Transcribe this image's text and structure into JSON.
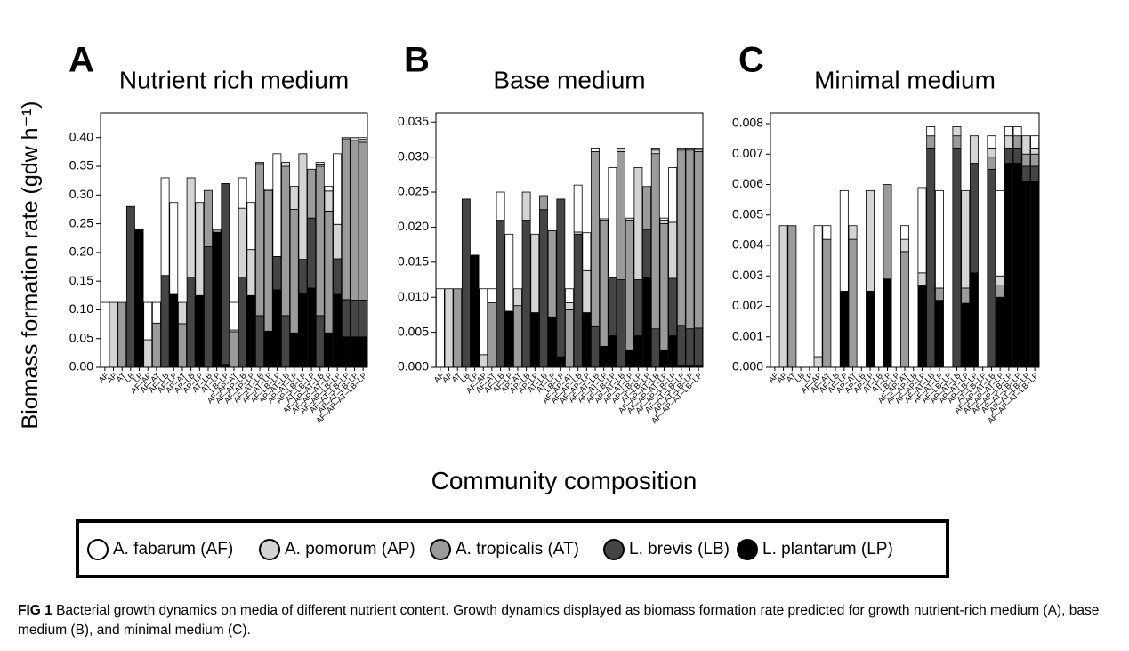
{
  "chart_data": [
    {
      "type": "bar",
      "stacked": true,
      "letter": "A",
      "title": "Nutrient rich medium",
      "categories": [
        "AF",
        "AP",
        "AT",
        "LB",
        "LP",
        "AF–AP",
        "AF–AT",
        "AF–LB",
        "AF–LP",
        "AP–AT",
        "AP–LB",
        "AP–LP",
        "AT–LB",
        "AT–LP",
        "LB–LP",
        "AF–AP–AT",
        "AF–AP–LB",
        "AF–AP–LP",
        "AF–AT–LB",
        "AF–AT–LP",
        "AF–LB–LP",
        "AP–AT–LB",
        "AP–AT–LP",
        "AP–LB–LP",
        "AT–LB–LP",
        "AF–AP–AT–LB",
        "AF–AP–AT–LP",
        "AF–AP–LB–LP",
        "AF–AT–LB–LP",
        "AP–AT–LB–LP",
        "AF–AP–AT–LB–LP"
      ],
      "series": [
        {
          "values": [
            0.113,
            null,
            null,
            null,
            null,
            0.065,
            0.036,
            0.17,
            0.16,
            null,
            null,
            null,
            null,
            null,
            null,
            0.048,
            0.053,
            0.082,
            0.002,
            0.002,
            0.179,
            null,
            null,
            null,
            null,
            0.003,
            0.008,
            0.123,
            0.002,
            null,
            0.003
          ]
        },
        {
          "values": [
            null,
            0.113,
            null,
            null,
            null,
            0.048,
            null,
            null,
            null,
            0.037,
            0.173,
            0.162,
            null,
            null,
            null,
            0.003,
            0.12,
            0.08,
            null,
            null,
            null,
            0.007,
            0.04,
            0.184,
            null,
            0.004,
            0.035,
            0.06,
            null,
            0.005,
            0.005
          ]
        },
        {
          "values": [
            null,
            null,
            0.113,
            null,
            null,
            null,
            0.077,
            null,
            null,
            0.076,
            null,
            null,
            0.098,
            0.005,
            null,
            0.062,
            null,
            null,
            0.265,
            0.245,
            null,
            0.26,
            0.215,
            null,
            0.085,
            0.26,
            0.212,
            null,
            0.28,
            0.278,
            0.275
          ]
        },
        {
          "values": [
            null,
            null,
            null,
            0.28,
            null,
            null,
            null,
            0.16,
            null,
            null,
            0.157,
            null,
            0.21,
            null,
            0.315,
            null,
            0.157,
            null,
            0.09,
            null,
            0.058,
            0.09,
            null,
            0.06,
            0.122,
            0.09,
            null,
            0.062,
            0.065,
            0.064,
            0.064
          ]
        },
        {
          "values": [
            null,
            null,
            null,
            null,
            0.24,
            null,
            null,
            null,
            0.127,
            null,
            null,
            0.125,
            null,
            0.235,
            0.005,
            null,
            null,
            0.125,
            null,
            0.063,
            0.135,
            null,
            0.06,
            0.128,
            0.138,
            null,
            0.06,
            0.127,
            0.053,
            0.053,
            0.053
          ]
        }
      ],
      "ylim": [
        0,
        0.443
      ],
      "yticks": [
        {
          "value": 0,
          "label": "0.00"
        },
        0.05,
        {
          "value": 0.1,
          "label": "0.10"
        },
        0.15,
        {
          "value": 0.2,
          "label": "0.20"
        },
        0.25,
        {
          "value": 0.3,
          "label": "0.30"
        },
        0.35,
        {
          "value": 0.4,
          "label": "0.40"
        }
      ]
    },
    {
      "type": "bar",
      "stacked": true,
      "letter": "B",
      "title": "Base medium",
      "categories": [
        "AF",
        "AP",
        "AT",
        "LB",
        "LP",
        "AF–AP",
        "AF–AT",
        "AF–LB",
        "AF–LP",
        "AP–AT",
        "AP–LB",
        "AP–LP",
        "AT–LB",
        "AT–LP",
        "LB–LP",
        "AF–AP–AT",
        "AF–AP–LB",
        "AF–AP–LP",
        "AF–AT–LB",
        "AF–AT–LP",
        "AF–LB–LP",
        "AP–AT–LB",
        "AP–AT–LP",
        "AP–LB–LP",
        "AT–LB–LP",
        "AF–AP–AT–LB",
        "AF–AP–AT–LP",
        "AF–AP–LB–LP",
        "AF–AT–LB–LP",
        "AP–AT–LB–LP",
        "AF–AP–AT–LB–LP"
      ],
      "series": [
        {
          "values": [
            0.0112,
            null,
            null,
            null,
            null,
            0.0094,
            0.002,
            0.004,
            0.011,
            null,
            null,
            null,
            null,
            null,
            null,
            0.002,
            0.0067,
            0.0054,
            0.0005,
            0.0002,
            0.0157,
            null,
            null,
            null,
            null,
            0.0003,
            0.0003,
            0.0078,
            0.0003,
            null,
            0.0002
          ]
        },
        {
          "values": [
            null,
            0.0112,
            null,
            null,
            null,
            0.0018,
            null,
            null,
            null,
            0.0024,
            0.004,
            0.0112,
            null,
            null,
            null,
            0.001,
            0.0003,
            0.006,
            null,
            null,
            null,
            0.0005,
            0.0003,
            0.016,
            null,
            0.0005,
            0.0005,
            0.008,
            null,
            0.0003,
            0.0003
          ]
        },
        {
          "values": [
            null,
            null,
            0.0112,
            null,
            null,
            null,
            0.0092,
            null,
            null,
            0.0088,
            null,
            null,
            0.002,
            0.0123,
            null,
            0.0082,
            null,
            null,
            0.025,
            0.018,
            null,
            0.0183,
            0.0185,
            null,
            0.0062,
            0.025,
            0.018,
            null,
            0.025,
            0.0255,
            0.0252
          ]
        },
        {
          "values": [
            null,
            null,
            null,
            0.024,
            null,
            null,
            null,
            0.021,
            null,
            null,
            0.021,
            null,
            0.0225,
            null,
            0.0225,
            null,
            0.019,
            null,
            0.0058,
            null,
            0.0083,
            0.0125,
            null,
            0.008,
            0.0068,
            0.0055,
            null,
            0.0082,
            0.0057,
            0.0052,
            0.0053
          ]
        },
        {
          "values": [
            null,
            null,
            null,
            null,
            0.016,
            null,
            null,
            null,
            0.008,
            null,
            null,
            0.0078,
            null,
            0.0072,
            0.0015,
            null,
            null,
            0.0078,
            null,
            0.003,
            0.0045,
            null,
            0.0025,
            0.0045,
            0.0128,
            null,
            0.0025,
            0.0045,
            0.0003,
            0.0003,
            0.0003
          ]
        }
      ],
      "ylim": [
        0,
        0.0363
      ],
      "yticks": [
        {
          "value": 0,
          "label": "0.000"
        },
        0.005,
        {
          "value": 0.01,
          "label": "0.010"
        },
        0.015,
        {
          "value": 0.02,
          "label": "0.020"
        },
        0.025,
        {
          "value": 0.03,
          "label": "0.030"
        },
        0.035
      ]
    },
    {
      "type": "bar",
      "stacked": true,
      "letter": "C",
      "title": "Minimal medium",
      "categories": [
        "AF",
        "AP",
        "AT",
        "LB",
        "LP",
        "AF–AP",
        "AF–AT",
        "AF–LB",
        "AF–LP",
        "AP–AT",
        "AP–LB",
        "AP–LP",
        "AT–LB",
        "AT–LP",
        "LB–LP",
        "AF–AP–AT",
        "AF–AP–LB",
        "AF–AP–LP",
        "AF–AT–LB",
        "AF–AT–LP",
        "AF–LB–LP",
        "AP–AT–LB",
        "AP–AT–LP",
        "AP–LB–LP",
        "AT–LB–LP",
        "AF–AP–AT–LB",
        "AF–AP–AT–LP",
        "AF–AP–LB–LP",
        "AF–AT–LB–LP",
        "AP–AT–LB–LP",
        "AF–AP–AT–LB–LP"
      ],
      "series": [
        {
          "values": [
            0,
            null,
            null,
            null,
            null,
            0.0043,
            0.00045,
            0,
            0.0033,
            null,
            null,
            null,
            null,
            null,
            null,
            0.00045,
            0,
            0.0028,
            0.0003,
            0.0032,
            0,
            null,
            null,
            null,
            null,
            0.0004,
            0.0028,
            0.0003,
            0.0003,
            null,
            0.0004
          ]
        },
        {
          "values": [
            null,
            0.00465,
            null,
            null,
            null,
            0.00035,
            null,
            null,
            null,
            0.00045,
            0,
            0.0033,
            null,
            null,
            null,
            0.0004,
            0,
            0.0004,
            null,
            null,
            null,
            0.0003,
            0.0032,
            0.0009,
            null,
            0.0003,
            0.0003,
            0.0004,
            null,
            0.0006,
            0.0002
          ]
        },
        {
          "values": [
            null,
            null,
            0.00465,
            null,
            null,
            null,
            0.0042,
            null,
            null,
            0.0042,
            null,
            null,
            0,
            0.0031,
            null,
            0.0038,
            null,
            null,
            0.0004,
            0.0004,
            null,
            0.0004,
            0.0005,
            null,
            0,
            0.0004,
            0.0004,
            null,
            0.0004,
            0.0004,
            0.0004
          ]
        },
        {
          "values": [
            null,
            null,
            null,
            0,
            null,
            null,
            null,
            0,
            null,
            null,
            0,
            null,
            0,
            null,
            0,
            null,
            0,
            null,
            0.0072,
            null,
            0,
            0.0072,
            null,
            0.0036,
            0,
            0.0065,
            null,
            0.0005,
            0.0005,
            0.0005,
            0.0005
          ]
        },
        {
          "values": [
            null,
            null,
            null,
            null,
            0,
            null,
            null,
            null,
            0.0025,
            null,
            null,
            0.0025,
            null,
            0.0029,
            0,
            null,
            null,
            0.0027,
            null,
            0.0022,
            0,
            null,
            0.0021,
            0.0031,
            0,
            null,
            0.0023,
            0.0067,
            0.0067,
            0.0061,
            0.0061
          ]
        }
      ],
      "ylim": [
        0,
        0.00835
      ],
      "yticks": [
        {
          "value": 0,
          "label": "0.000"
        },
        0.001,
        0.002,
        0.003,
        0.004,
        0.005,
        0.006,
        0.007,
        0.008
      ]
    }
  ],
  "y_label": "Biomass formation rate (gdw h⁻¹)",
  "x_label": "Community composition",
  "legend": [
    {
      "name": "A. fabarum (AF)",
      "color": "#ffffff"
    },
    {
      "name": "A. pomorum (AP)",
      "color": "#d4d4d4"
    },
    {
      "name": "A. tropicalis (AT)",
      "color": "#9b9b9b"
    },
    {
      "name": "L. brevis (LB)",
      "color": "#454545"
    },
    {
      "name": "L. plantarum (LP)",
      "color": "#000000"
    }
  ],
  "caption": {
    "label": "FIG 1",
    "text": "Bacterial growth dynamics on media of different nutrient content. Growth dynamics displayed as biomass formation rate predicted for growth nutrient-rich medium (A), base medium (B), and minimal medium (C)."
  }
}
